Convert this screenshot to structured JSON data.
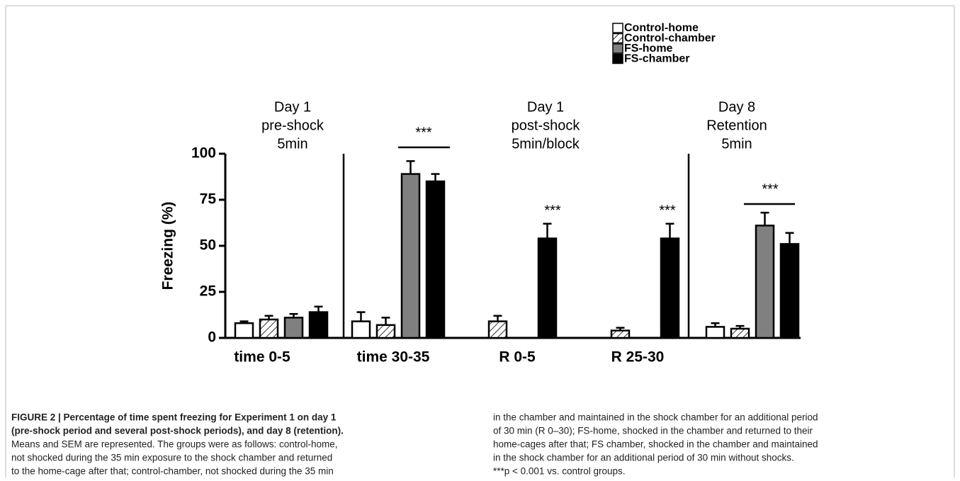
{
  "chart_data": {
    "type": "bar",
    "categories": [
      "time 0-5",
      "time 30-35",
      "R 0-5",
      "R 25-30",
      null
    ],
    "series": [
      {
        "name": "Control-home",
        "color": "#ffffff",
        "values": [
          8,
          9,
          null,
          null,
          6
        ],
        "errors": [
          1,
          5,
          null,
          null,
          2
        ]
      },
      {
        "name": "Control-chamber",
        "color": "#ffffff",
        "hatch": true,
        "values": [
          10,
          7,
          9,
          4,
          5
        ],
        "errors": [
          2,
          4,
          3,
          1.5,
          1.5
        ]
      },
      {
        "name": "FS-home",
        "color": "#808080",
        "values": [
          11,
          89,
          null,
          null,
          61
        ],
        "errors": [
          2,
          7,
          null,
          null,
          7
        ]
      },
      {
        "name": "FS-chamber",
        "color": "#000000",
        "values": [
          14,
          85,
          54,
          54,
          51
        ],
        "errors": [
          3,
          4,
          8,
          8,
          6
        ]
      }
    ],
    "y_label": "Freezing (%)",
    "ylim": [
      0,
      100
    ],
    "yticks": [
      0,
      25,
      50,
      75,
      100
    ],
    "panel_labels": [
      [
        "Day 1",
        "pre-shock",
        "5min"
      ],
      [
        "Day 1",
        "post-shock",
        "5min/block"
      ],
      [
        "Day 8",
        "Retention",
        "5min"
      ]
    ],
    "significance": [
      "***",
      "***",
      "***",
      "***"
    ]
  },
  "caption": {
    "title_lines": [
      "FIGURE 2 | Percentage of time spent freezing for Experiment 1 on day 1",
      "(pre-shock period and several post-shock periods), and day 8 (retention)."
    ],
    "left_lines": [
      "Means and SEM are represented. The groups were as follows: control-home,",
      "not shocked during the 35 min exposure to the shock chamber and returned",
      "to the home-cage after that; control-chamber, not shocked during the 35 min"
    ],
    "right_lines": [
      "in the chamber and maintained in the shock chamber for an additional period",
      "of 30 min (R 0–30); FS-home, shocked in the chamber and returned to their",
      "home-cages after that; FS chamber, shocked in the chamber and maintained",
      "in the shock chamber for an additional period of 30 min without shocks.",
      "***p < 0.001 vs. control groups."
    ]
  }
}
